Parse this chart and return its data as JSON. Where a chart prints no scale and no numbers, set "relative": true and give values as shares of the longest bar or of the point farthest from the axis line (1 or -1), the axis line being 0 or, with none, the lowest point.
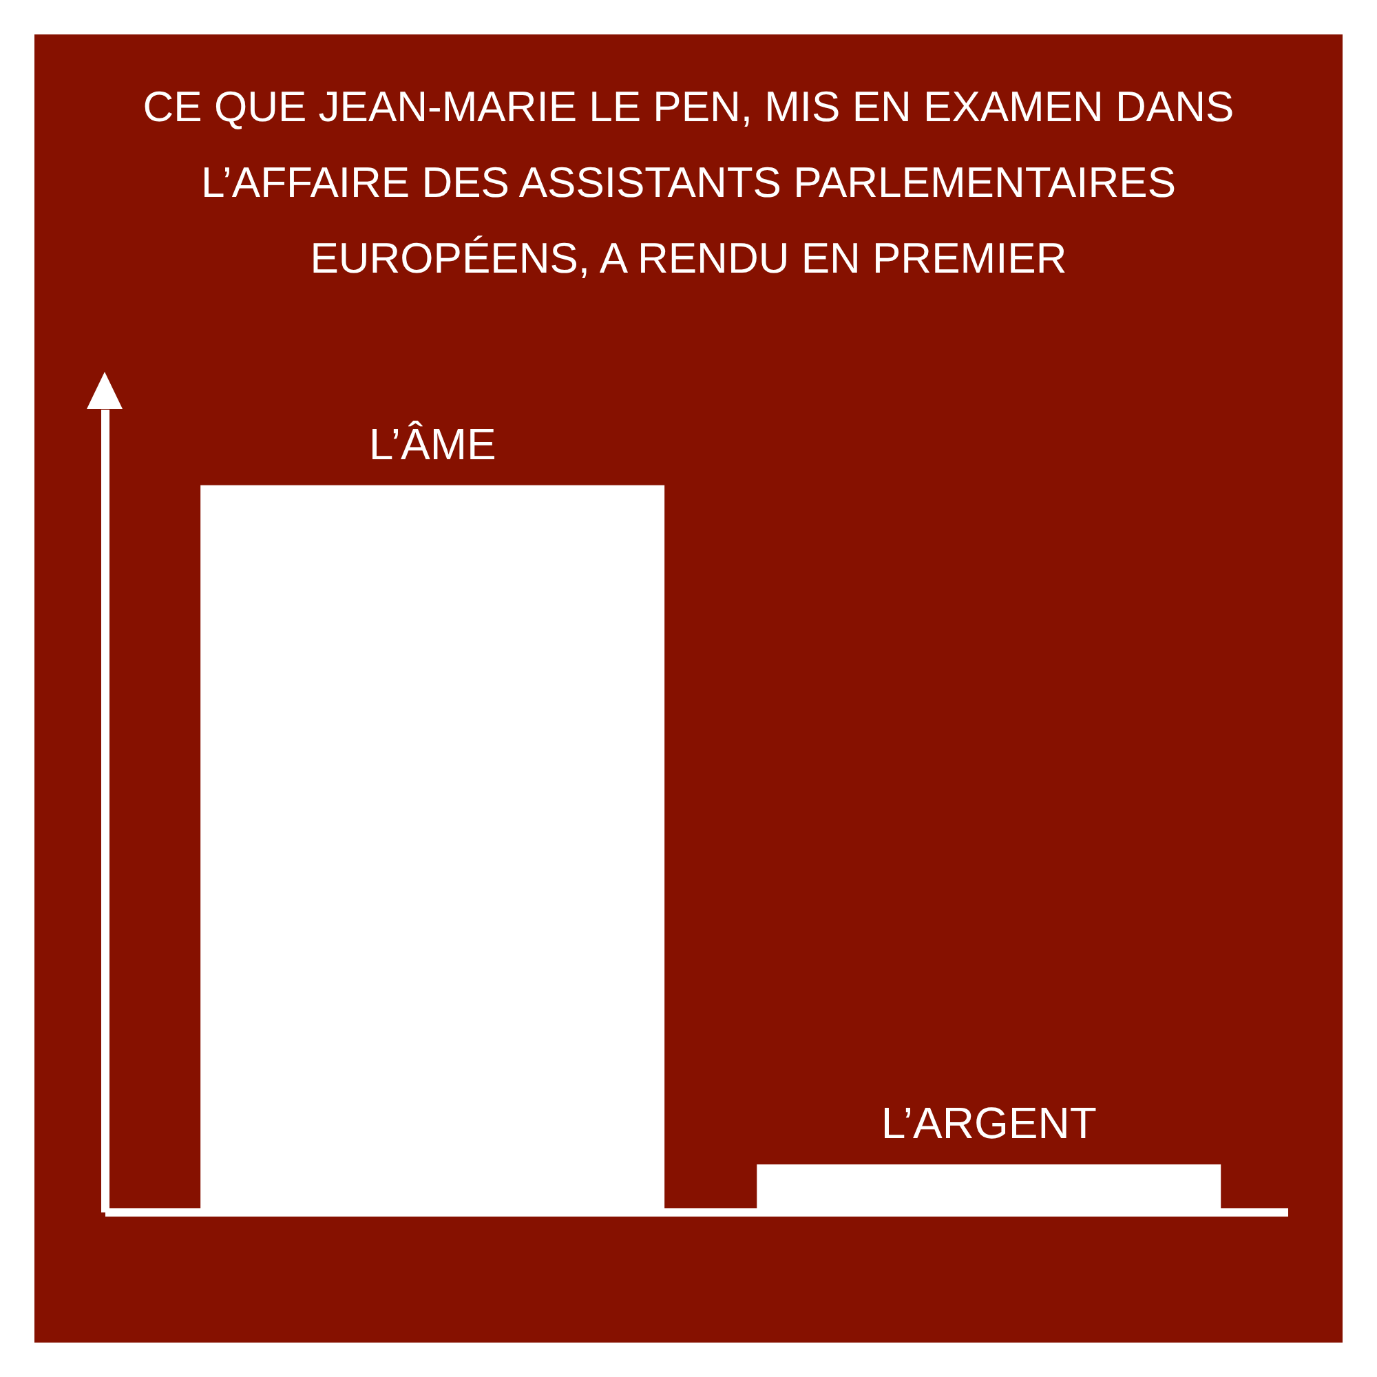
{
  "chart_data": {
    "type": "bar",
    "title": "CE QUE JEAN-MARIE LE PEN, MIS EN EXAMEN DANS L’AFFAIRE DES ASSISTANTS PARLEMENTAIRES EUROPÉENS, A RENDU EN PREMIER",
    "categories": [
      "L’ÂME",
      "L’ARGENT"
    ],
    "values": [
      1,
      0.066
    ],
    "color": "#ffffff",
    "relative": true,
    "tick_labels": false
  }
}
